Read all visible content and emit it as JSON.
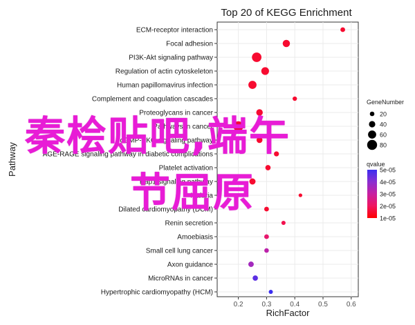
{
  "chart_data": {
    "type": "scatter",
    "title": "Top 20 of KEGG Enrichment",
    "xlabel": "RichFactor",
    "ylabel": "Pathway",
    "xlim": [
      0.125,
      0.625
    ],
    "xticks": [
      "0.2",
      "0.3",
      "0.4",
      "0.5",
      "0.6"
    ],
    "xtick_values": [
      0.2,
      0.3,
      0.4,
      0.5,
      0.6
    ],
    "grid": true,
    "legend_position": "right",
    "pathways": [
      {
        "name": "ECM-receptor interaction",
        "x": 0.57,
        "gene_number": 22,
        "qvalue": 1.5e-05
      },
      {
        "name": "Focal adhesion",
        "x": 0.37,
        "gene_number": 50,
        "qvalue": 1.5e-05
      },
      {
        "name": "PI3K-Akt signaling pathway",
        "x": 0.265,
        "gene_number": 75,
        "qvalue": 1.5e-05
      },
      {
        "name": "Regulation of actin cytoskeleton",
        "x": 0.295,
        "gene_number": 55,
        "qvalue": 1.5e-05
      },
      {
        "name": "Human papillomavirus infection",
        "x": 0.25,
        "gene_number": 60,
        "qvalue": 1.5e-05
      },
      {
        "name": "Complement and coagulation cascades",
        "x": 0.4,
        "gene_number": 18,
        "qvalue": 1.5e-05
      },
      {
        "name": "Proteoglycans in cancer",
        "x": 0.275,
        "gene_number": 42,
        "qvalue": 1.5e-05
      },
      {
        "name": "Pathways in cancer",
        "x": 0.2,
        "gene_number": 80,
        "qvalue": 1.5e-05
      },
      {
        "name": "cGMP-PKG signaling pathway",
        "x": 0.275,
        "gene_number": 35,
        "qvalue": 1.5e-05
      },
      {
        "name": "AGE-RAGE signaling pathway in diabetic complications",
        "x": 0.335,
        "gene_number": 25,
        "qvalue": 1.5e-05
      },
      {
        "name": "Platelet activation",
        "x": 0.305,
        "gene_number": 28,
        "qvalue": 1.5e-05
      },
      {
        "name": "Rap1 signaling pathway",
        "x": 0.25,
        "gene_number": 38,
        "qvalue": 1.5e-05
      },
      {
        "name": "Malaria",
        "x": 0.42,
        "gene_number": 10,
        "qvalue": 1.5e-05
      },
      {
        "name": "Dilated cardiomyopathy (DCM)",
        "x": 0.3,
        "gene_number": 22,
        "qvalue": 1.5e-05
      },
      {
        "name": "Renin secretion",
        "x": 0.36,
        "gene_number": 16,
        "qvalue": 1.8e-05
      },
      {
        "name": "Amoebiasis",
        "x": 0.3,
        "gene_number": 22,
        "qvalue": 2.2e-05
      },
      {
        "name": "Small cell lung cancer",
        "x": 0.3,
        "gene_number": 20,
        "qvalue": 3.2e-05
      },
      {
        "name": "Axon guidance",
        "x": 0.245,
        "gene_number": 30,
        "qvalue": 3.6e-05
      },
      {
        "name": "MicroRNAs in cancer",
        "x": 0.26,
        "gene_number": 28,
        "qvalue": 4.6e-05
      },
      {
        "name": "Hypertrophic cardiomyopathy (HCM)",
        "x": 0.315,
        "gene_number": 15,
        "qvalue": 5e-05
      }
    ],
    "size_legend": {
      "title": "GeneNumber",
      "values": [
        20,
        40,
        60,
        80
      ],
      "labels": [
        "20",
        "40",
        "60",
        "80"
      ]
    },
    "color_legend": {
      "title": "qvalue",
      "min": 1e-05,
      "max": 5e-05,
      "ticks": [
        5e-05,
        4e-05,
        3e-05,
        2e-05,
        1e-05
      ],
      "labels": [
        "5e-05",
        "4e-05",
        "3e-05",
        "2e-05",
        "1e-05"
      ],
      "colors": [
        "#3b2df0",
        "#8a2fd0",
        "#c81fa0",
        "#ef1560",
        "#ff0000"
      ]
    }
  },
  "overlay": {
    "line1": "秦桧贴吧,端午",
    "line2": "节屈原",
    "color": "#e81cd6"
  }
}
